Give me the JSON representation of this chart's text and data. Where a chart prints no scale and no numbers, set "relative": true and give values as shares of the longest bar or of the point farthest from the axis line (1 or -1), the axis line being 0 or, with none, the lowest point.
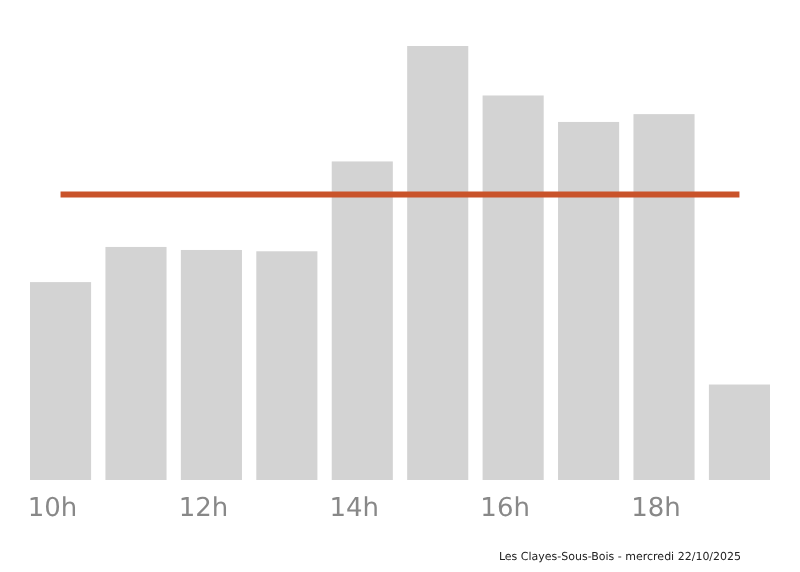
{
  "chart_data": {
    "type": "bar",
    "relative": true,
    "categories": [
      "10h",
      null,
      "12h",
      null,
      "14h",
      null,
      "16h",
      null,
      "18h",
      null
    ],
    "values": [
      0.456,
      0.537,
      0.53,
      0.527,
      0.734,
      1,
      0.886,
      0.825,
      0.843,
      0.22
    ],
    "color": "#d3d3d3",
    "ref_lines": [
      {
        "axis": "y",
        "value": 0.658,
        "color": "#c9532a"
      }
    ],
    "annotations": [
      "Les Clayes-Sous-Bois - mercredi 22/10/2025"
    ]
  }
}
